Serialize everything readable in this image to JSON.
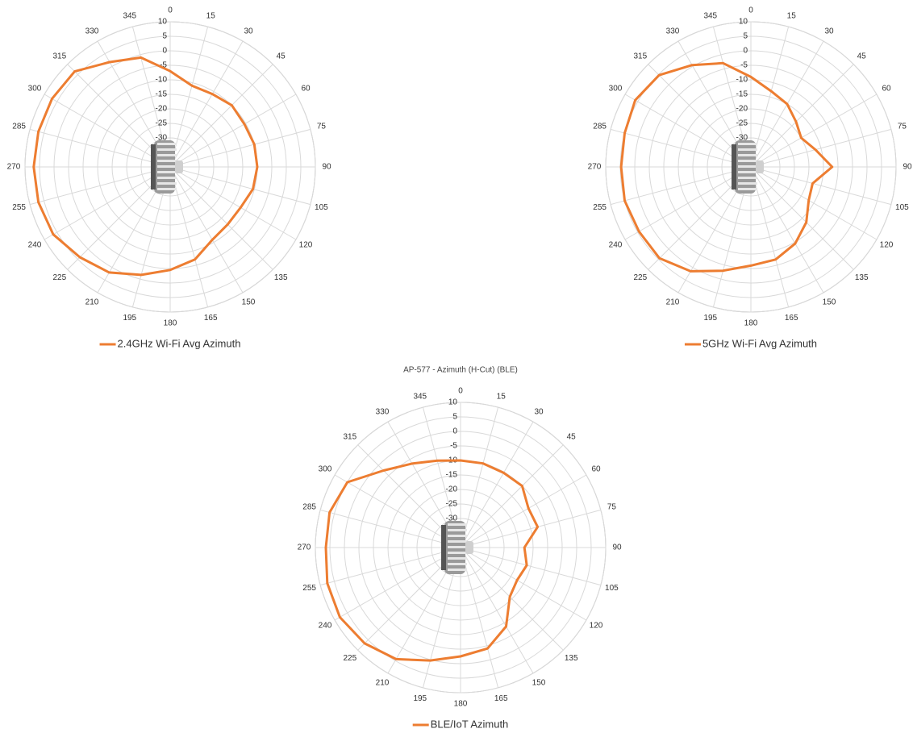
{
  "chart_data": [
    {
      "type": "radar",
      "categories": [
        0,
        15,
        30,
        45,
        60,
        75,
        90,
        105,
        120,
        135,
        150,
        165,
        180,
        195,
        210,
        225,
        240,
        255,
        270,
        285,
        300,
        315,
        330,
        345
      ],
      "rlim": [
        -40,
        10
      ],
      "rticks": [
        -30,
        -25,
        -20,
        -15,
        -10,
        -5,
        0,
        5,
        10
      ],
      "series": [
        {
          "name": "2.4GHz Wi-Fi Avg Azimuth",
          "color": "#ed7d31",
          "values": [
            -7,
            -11,
            -11,
            -10,
            -10.5,
            -10,
            -10,
            -10.5,
            -12,
            -12,
            -11,
            -7,
            -4.5,
            -1.5,
            2,
            4,
            6.5,
            7,
            7,
            7,
            7,
            6.5,
            1.7,
            -1
          ]
        }
      ]
    },
    {
      "type": "radar",
      "categories": [
        0,
        15,
        30,
        45,
        60,
        75,
        90,
        105,
        120,
        135,
        150,
        165,
        180,
        195,
        210,
        225,
        240,
        255,
        270,
        285,
        300,
        315,
        330,
        345
      ],
      "rlim": [
        -40,
        10
      ],
      "rticks": [
        -30,
        -25,
        -20,
        -15,
        -10,
        -5,
        0,
        5,
        10
      ],
      "series": [
        {
          "name": "5GHz Wi-Fi Avg Azimuth",
          "color": "#ed7d31",
          "values": [
            -9,
            -13,
            -15,
            -18,
            -20,
            -17,
            -12,
            -18,
            -17,
            -13,
            -9.5,
            -7,
            -6,
            -3,
            1.5,
            4.5,
            4.5,
            5,
            4.7,
            5,
            6,
            4.7,
            0.5,
            -3
          ]
        }
      ]
    },
    {
      "type": "radar",
      "title": "AP-577 - Azimuth (H-Cut) (BLE)",
      "categories": [
        0,
        15,
        30,
        45,
        60,
        75,
        90,
        105,
        120,
        135,
        150,
        165,
        180,
        195,
        210,
        225,
        240,
        255,
        270,
        285,
        300,
        315,
        330,
        345
      ],
      "rlim": [
        -40,
        10
      ],
      "rticks": [
        -30,
        -25,
        -20,
        -15,
        -10,
        -5,
        0,
        5,
        10
      ],
      "series": [
        {
          "name": "BLE/IoT Azimuth",
          "color": "#ed7d31",
          "values": [
            -10,
            -10,
            -10.3,
            -10,
            -13,
            -12.5,
            -18,
            -16.4,
            -17.5,
            -16,
            -8.6,
            -4,
            -2.5,
            0.3,
            4.4,
            6.7,
            8,
            7.5,
            6.4,
            6.7,
            5,
            -2.5,
            -6.6,
            -9
          ]
        }
      ]
    }
  ]
}
